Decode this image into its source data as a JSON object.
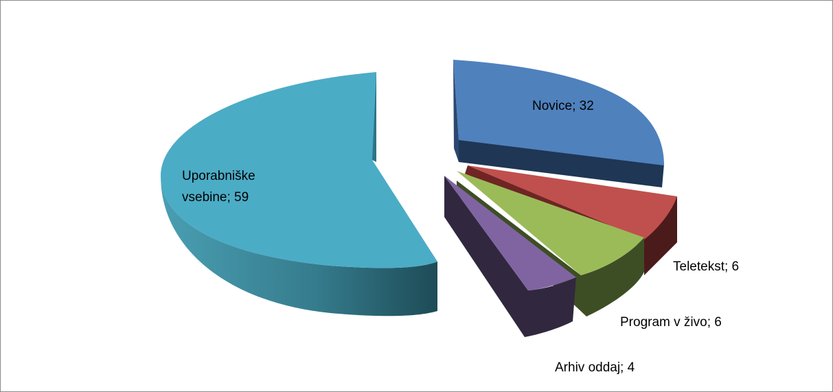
{
  "chart_data": {
    "type": "pie",
    "style": "3d-exploded",
    "slices": [
      {
        "name": "Uporabniške vsebine",
        "value": 59,
        "label_lines": [
          "Uporabniške",
          "vsebine; 59"
        ],
        "color": "#4BACC6"
      },
      {
        "name": "Novice",
        "value": 32,
        "label_lines": [
          "Novice; 32"
        ],
        "color": "#4F81BD"
      },
      {
        "name": "Teletekst",
        "value": 6,
        "label_lines": [
          "Teletekst; 6"
        ],
        "color": "#C0504D"
      },
      {
        "name": "Program v živo",
        "value": 6,
        "label_lines": [
          "Program v živo; 6"
        ],
        "color": "#9BBB59"
      },
      {
        "name": "Arhiv oddaj",
        "value": 4,
        "label_lines": [
          "Arhiv oddaj; 4"
        ],
        "color": "#8064A2"
      }
    ],
    "legend": "none",
    "title": ""
  }
}
